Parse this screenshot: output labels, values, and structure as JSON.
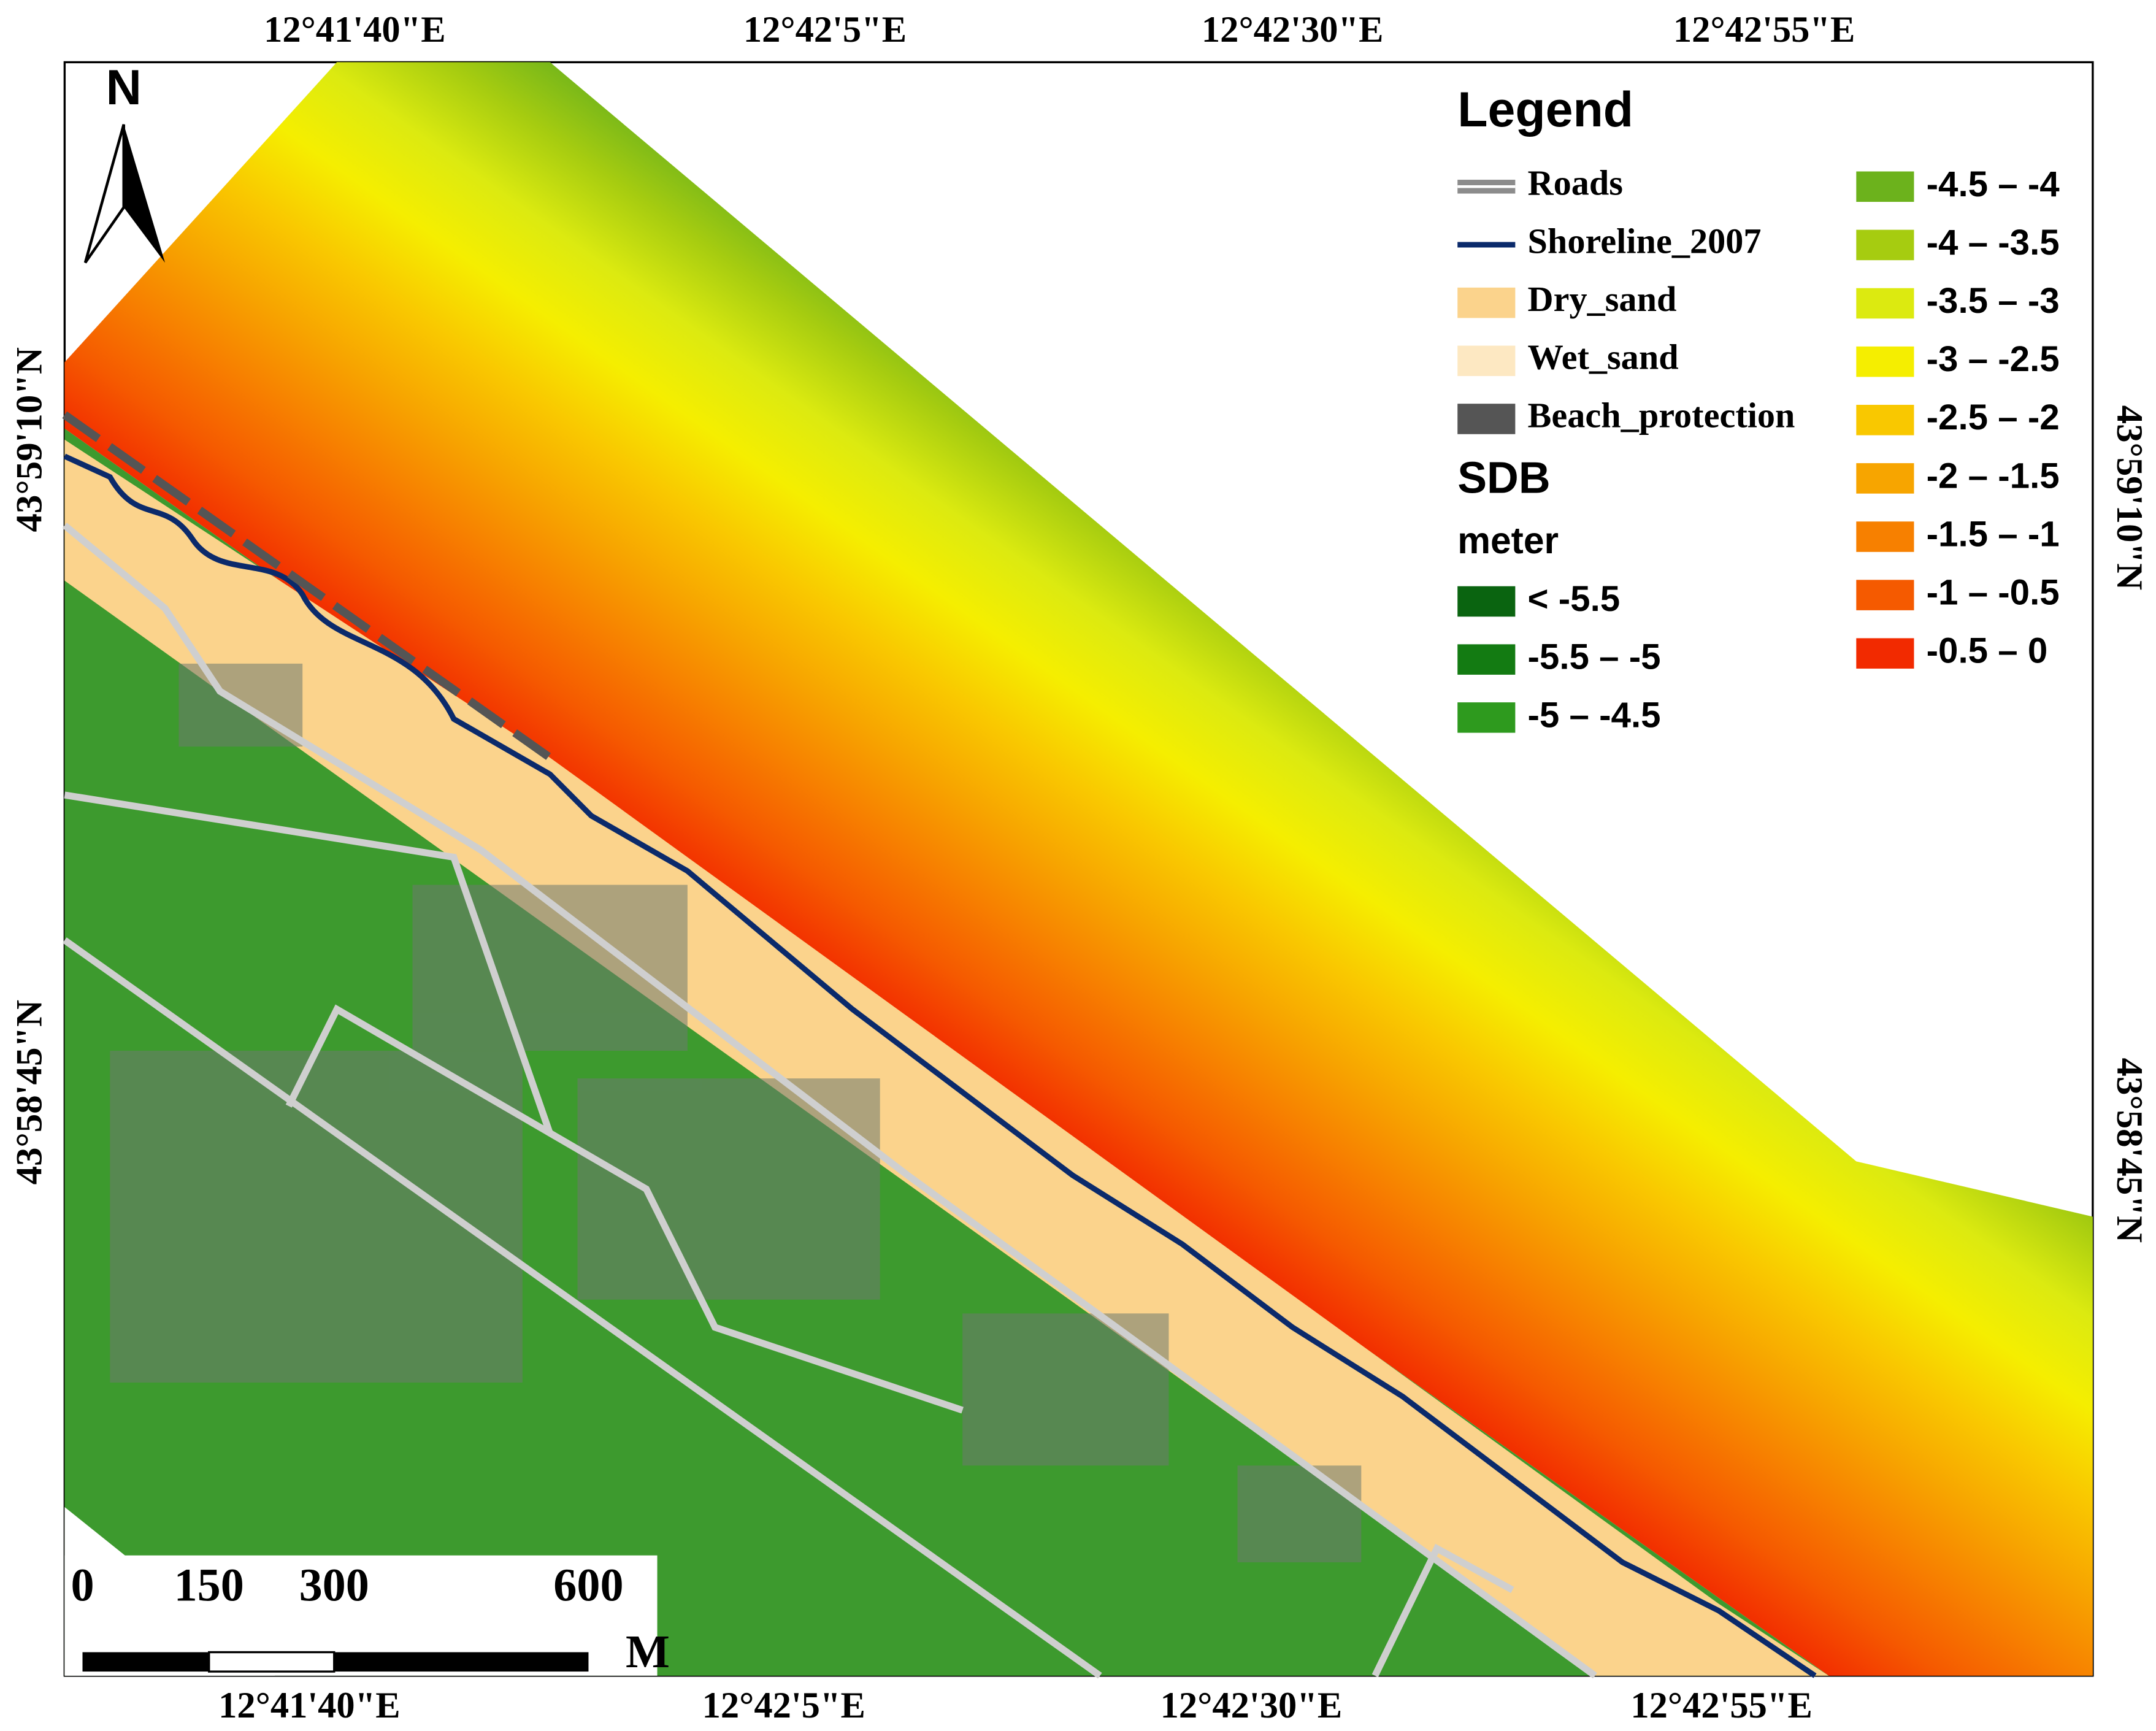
{
  "map": {
    "top_labels": [
      "12°41'40\"E",
      "12°42'5\"E",
      "12°42'30\"E",
      "12°42'55\"E"
    ],
    "bottom_labels": [
      "12°41'40\"E",
      "12°42'5\"E",
      "12°42'30\"E",
      "12°42'55\"E"
    ],
    "left_labels": [
      "43°59'10\"N",
      "43°58'45\"N"
    ],
    "right_labels": [
      "43°59'10\"N",
      "43°58'45\"N"
    ],
    "north": "N",
    "legend": {
      "title": "Legend",
      "items": [
        {
          "label": "Roads",
          "symbol": "road",
          "color": "#8c8c8c"
        },
        {
          "label": "Shoreline_2007",
          "symbol": "line",
          "color": "#0b2a6b"
        },
        {
          "label": "Dry_sand",
          "symbol": "patch",
          "color": "#fbd38c"
        },
        {
          "label": "Wet_sand",
          "symbol": "patch",
          "color": "#fde8c2"
        },
        {
          "label": "Beach_protection",
          "symbol": "patch",
          "color": "#555555"
        }
      ],
      "sdb_title": "SDB",
      "unit": "meter",
      "classes": [
        {
          "label": "< -5.5",
          "color": "#0a6410"
        },
        {
          "label": "-5.5 – -5",
          "color": "#137b12"
        },
        {
          "label": "-5 – -4.5",
          "color": "#2e9a1e"
        },
        {
          "label": "-4.5 – -4",
          "color": "#6cb21c"
        },
        {
          "label": "-4 – -3.5",
          "color": "#a6cc10"
        },
        {
          "label": "-3.5 – -3",
          "color": "#dcea10"
        },
        {
          "label": "-3 – -2.5",
          "color": "#f5ee00"
        },
        {
          "label": "-2.5 – -2",
          "color": "#f9c800"
        },
        {
          "label": "-2 – -1.5",
          "color": "#f7a500"
        },
        {
          "label": "-1.5 – -1",
          "color": "#f78000"
        },
        {
          "label": "-1 – -0.5",
          "color": "#f55a00"
        },
        {
          "label": "-0.5 – 0",
          "color": "#f22a00"
        }
      ]
    },
    "scale": {
      "labels": [
        "0",
        "150",
        "300",
        "600"
      ],
      "unit": "M"
    }
  }
}
